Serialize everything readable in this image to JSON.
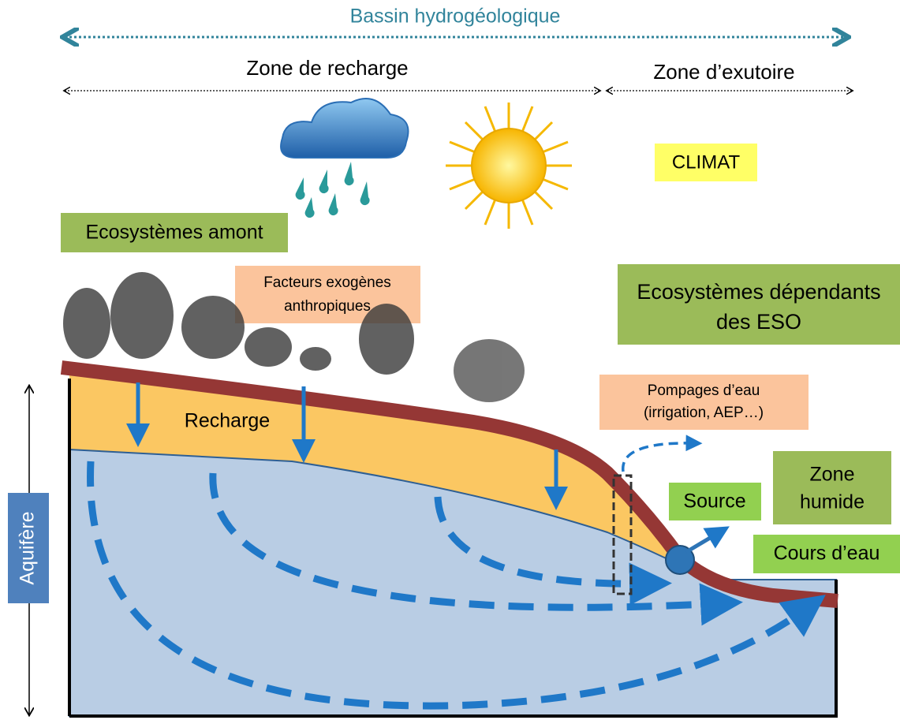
{
  "header": {
    "title": "Bassin hydrogéologique"
  },
  "zones": {
    "recharge": "Zone de recharge",
    "exutoire": "Zone d’exutoire"
  },
  "labels": {
    "climat": "CLIMAT",
    "ecosystemes_amont": "Ecosystèmes amont",
    "facteurs": [
      "Facteurs exogènes",
      "anthropiques"
    ],
    "ecosystemes_dependants": [
      "Ecosystèmes dépendants",
      "des ESO"
    ],
    "pompages": [
      "Pompages d’eau",
      "(irrigation, AEP…)"
    ],
    "recharge": "Recharge",
    "source": "Source",
    "zone_humide": [
      "Zone",
      "humide"
    ],
    "cours_eau": "Cours d’eau",
    "aquifere": "Aquifère"
  }
}
